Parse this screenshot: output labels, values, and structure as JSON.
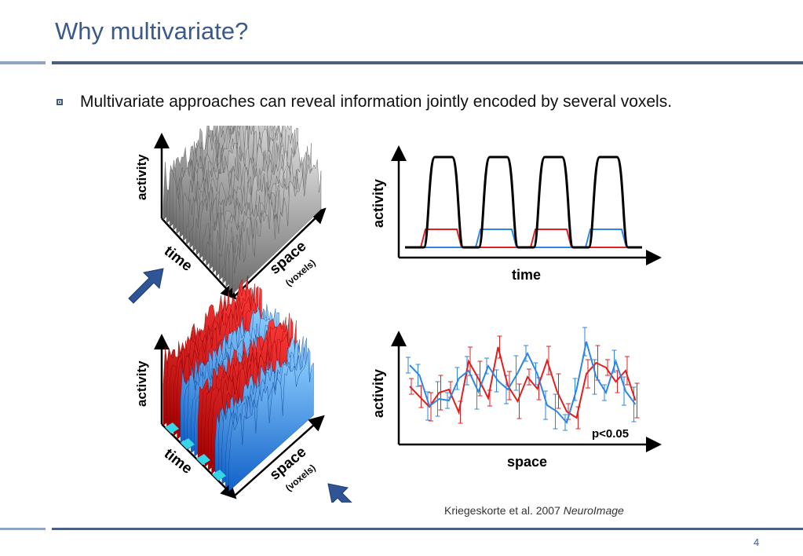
{
  "slide": {
    "title": "Why multivariate?",
    "bullet": "Multivariate approaches can reveal information jointly encoded by several voxels.",
    "citation_authors": "Kriegeskorte et al. 2007 ",
    "citation_journal": "NeuroImage",
    "page_number": "4"
  },
  "figure": {
    "panel_top_left": {
      "y_axis": "activity",
      "x_axis_time": "time",
      "x_axis_space": "space",
      "space_units": "(voxels)"
    },
    "panel_top_right": {
      "y_axis": "activity",
      "x_axis": "time"
    },
    "panel_bottom_left": {
      "y_axis": "activity",
      "x_axis_time": "time",
      "x_axis_space": "space",
      "space_units": "(voxels)"
    },
    "panel_bottom_right": {
      "y_axis": "activity",
      "x_axis": "space",
      "annotation": "p<0.05"
    }
  },
  "colors": {
    "title": "#3b5a8a",
    "condition_red": "#e02020",
    "condition_blue": "#2f86e0",
    "arrow": "#2f5597"
  }
}
